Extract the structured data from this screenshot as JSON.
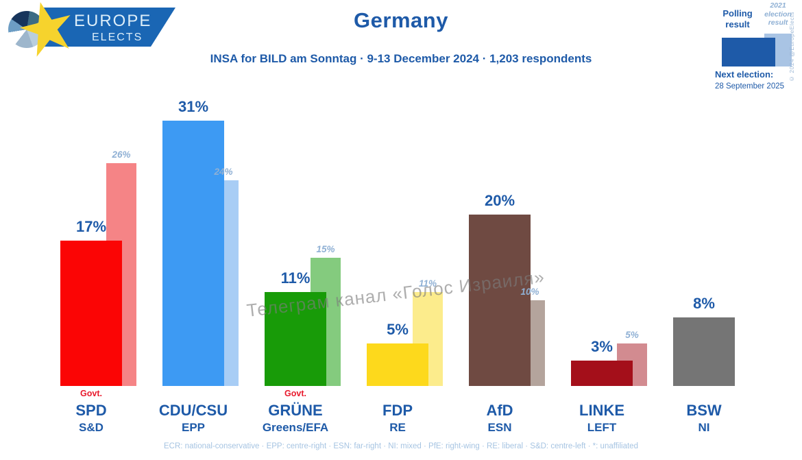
{
  "header": {
    "logo_line1": "EUROPE",
    "logo_line2": "ELECTS",
    "title": "Germany",
    "subtitle": "INSA for BILD am Sonntag · 9-13 December 2024 · 1,203 respondents"
  },
  "legend": {
    "polling_label": "Polling result",
    "election_label": "2021 election result",
    "polling_color": "#1e5aa8",
    "election_color": "#a9c4e4",
    "copyright": "© 2024 @EuropeElects",
    "next_election_label": "Next election:",
    "next_election_date": "28 September 2025"
  },
  "watermark": "Телеграм канал «Голос Израиля»",
  "footer": "ECR: national-conservative · EPP: centre-right · ESN: far-right · NI: mixed · PfE: right-wing · RE: liberal · S&D: centre-left · *: unaffiliated",
  "chart_data": {
    "type": "bar",
    "title": "Germany",
    "subtitle": "INSA for BILD am Sonntag · 9-13 December 2024 · 1,203 respondents",
    "unit": "%",
    "ylim": [
      0,
      33
    ],
    "grid": false,
    "legend_position": "top-right",
    "govt_label": "Govt.",
    "categories": [
      "SPD",
      "CDU/CSU",
      "GRÜNE",
      "FDP",
      "AfD",
      "LINKE",
      "BSW"
    ],
    "series": [
      {
        "name": "Polling result",
        "values": [
          17,
          31,
          11,
          5,
          20,
          3,
          8
        ]
      },
      {
        "name": "2021 election result",
        "values": [
          26,
          24,
          15,
          11,
          10,
          5,
          null
        ]
      }
    ],
    "parties": [
      {
        "name": "SPD",
        "group": "S&D",
        "polling": 17,
        "polling_text": "17%",
        "election": 26,
        "election_text": "26%",
        "govt": true,
        "color": "#fb0505",
        "election_color": "#f58486"
      },
      {
        "name": "CDU/CSU",
        "group": "EPP",
        "polling": 31,
        "polling_text": "31%",
        "election": 24,
        "election_text": "24%",
        "govt": false,
        "color": "#3d9af3",
        "election_color": "#a8cdf5"
      },
      {
        "name": "GRÜNE",
        "group": "Greens/EFA",
        "polling": 11,
        "polling_text": "11%",
        "election": 15,
        "election_text": "15%",
        "govt": true,
        "color": "#189b08",
        "election_color": "#84cb7e"
      },
      {
        "name": "FDP",
        "group": "RE",
        "polling": 5,
        "polling_text": "5%",
        "election": 11,
        "election_text": "11%",
        "govt": false,
        "color": "#fdd91c",
        "election_color": "#fcec8c"
      },
      {
        "name": "AfD",
        "group": "ESN",
        "polling": 20,
        "polling_text": "20%",
        "election": 10,
        "election_text": "10%",
        "govt": false,
        "color": "#6f4a42",
        "election_color": "#b4a49c"
      },
      {
        "name": "LINKE",
        "group": "LEFT",
        "polling": 3,
        "polling_text": "3%",
        "election": 5,
        "election_text": "5%",
        "govt": false,
        "color": "#a40f1a",
        "election_color": "#d28b90"
      },
      {
        "name": "BSW",
        "group": "NI",
        "polling": 8,
        "polling_text": "8%",
        "election": null,
        "election_text": "",
        "govt": false,
        "color": "#757575",
        "election_color": null
      }
    ]
  }
}
